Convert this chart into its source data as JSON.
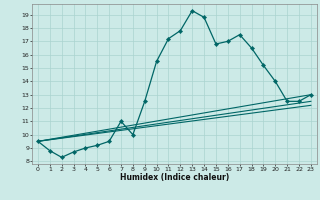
{
  "xlabel": "Humidex (Indice chaleur)",
  "background_color": "#cceae7",
  "grid_color": "#aad4d0",
  "line_color": "#006666",
  "xlim": [
    -0.5,
    23.5
  ],
  "ylim": [
    7.8,
    19.8
  ],
  "xticks": [
    0,
    1,
    2,
    3,
    4,
    5,
    6,
    7,
    8,
    9,
    10,
    11,
    12,
    13,
    14,
    15,
    16,
    17,
    18,
    19,
    20,
    21,
    22,
    23
  ],
  "yticks": [
    8,
    9,
    10,
    11,
    12,
    13,
    14,
    15,
    16,
    17,
    18,
    19
  ],
  "main_line": {
    "x": [
      0,
      1,
      2,
      3,
      4,
      5,
      6,
      7,
      8,
      9,
      10,
      11,
      12,
      13,
      14,
      15,
      16,
      17,
      18,
      19,
      20,
      21,
      22,
      23
    ],
    "y": [
      9.5,
      8.8,
      8.3,
      8.7,
      9.0,
      9.2,
      9.5,
      11.0,
      10.0,
      12.5,
      15.5,
      17.2,
      17.8,
      19.3,
      18.8,
      16.8,
      17.0,
      17.5,
      16.5,
      15.2,
      14.0,
      12.5,
      12.5,
      13.0
    ]
  },
  "extra_lines": [
    {
      "x": [
        0,
        23
      ],
      "y": [
        9.5,
        13.0
      ]
    },
    {
      "x": [
        0,
        23
      ],
      "y": [
        9.5,
        12.5
      ]
    },
    {
      "x": [
        0,
        23
      ],
      "y": [
        9.5,
        12.2
      ]
    }
  ]
}
